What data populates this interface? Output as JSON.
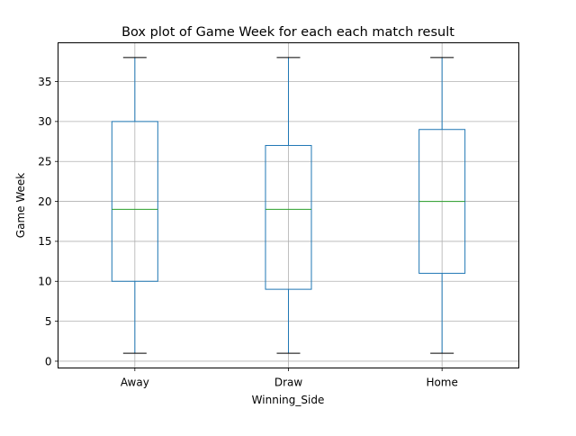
{
  "chart_data": {
    "type": "box",
    "title": "Box plot of Game Week for each each match result",
    "xlabel": "Winning_Side",
    "ylabel": "Game Week",
    "categories": [
      "Away",
      "Draw",
      "Home"
    ],
    "boxes": [
      {
        "category": "Away",
        "min": 1,
        "q1": 10,
        "median": 19,
        "q3": 30,
        "max": 38
      },
      {
        "category": "Draw",
        "min": 1,
        "q1": 9,
        "median": 19,
        "q3": 27,
        "max": 38
      },
      {
        "category": "Home",
        "min": 1,
        "q1": 11,
        "median": 20,
        "q3": 29,
        "max": 38
      }
    ],
    "ylim": [
      -0.85,
      39.85
    ],
    "yticks": [
      0,
      5,
      10,
      15,
      20,
      25,
      30,
      35
    ],
    "grid": true,
    "colors": {
      "box": "#1f77b4",
      "median": "#2ca02c",
      "cap": "#000000",
      "grid": "#b0b0b0"
    }
  }
}
